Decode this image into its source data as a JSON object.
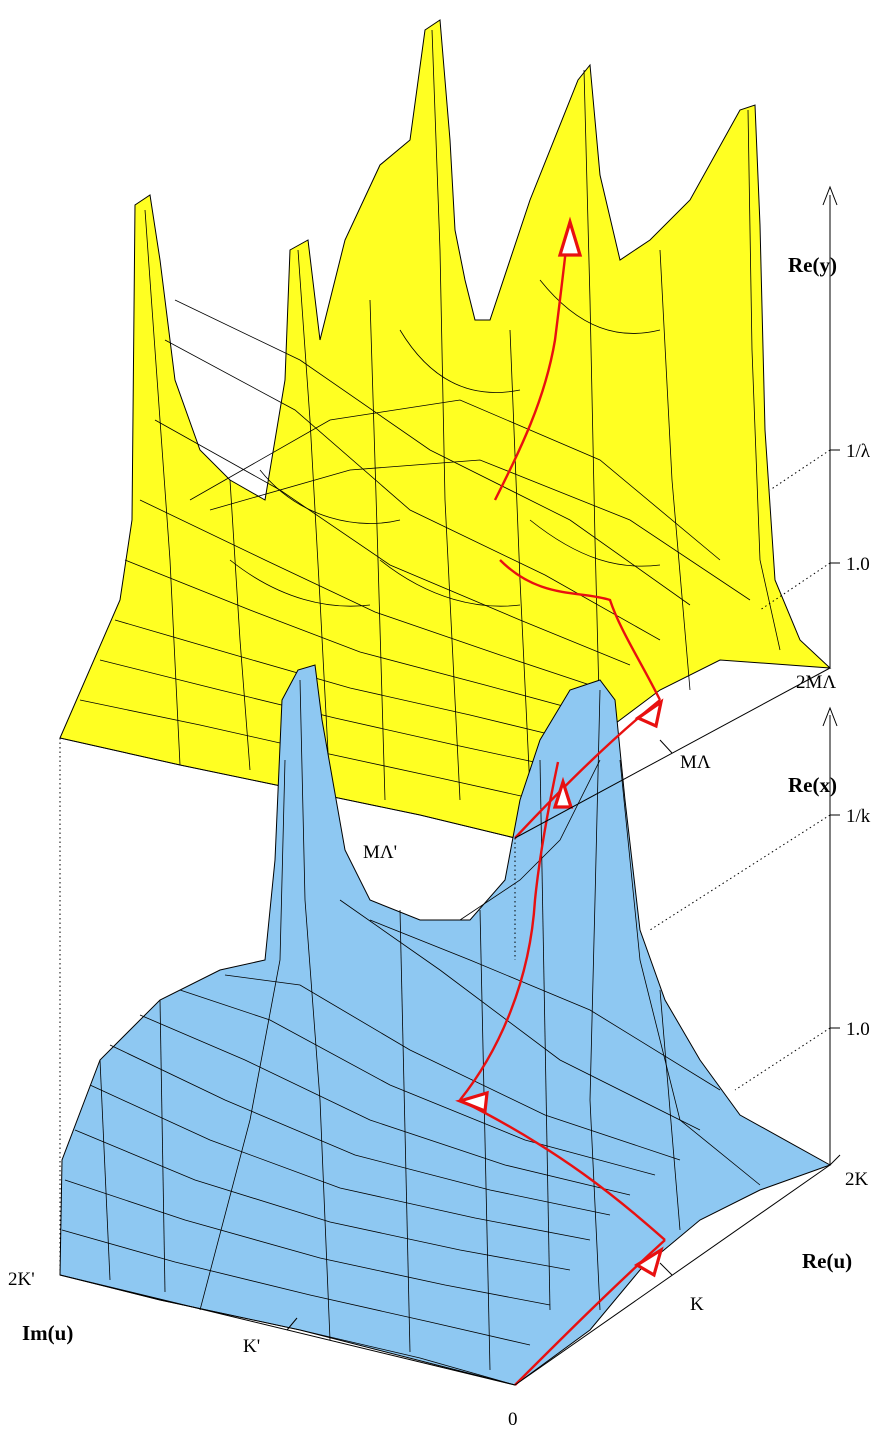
{
  "colors": {
    "upper_surface": "#ffff22",
    "upper_underside": "#33e0e0",
    "lower_surface": "#8ec8f2",
    "lower_underside": "#33e0e0",
    "mesh": "#000000",
    "path": "#e81010"
  },
  "upper_plot": {
    "axis_title": "Re(y)",
    "ticks": {
      "inv_lambda": "1/λ",
      "one": "1.0"
    },
    "base_axis": {
      "far": "2MΛ",
      "mid": "MΛ",
      "near": "MΛ'"
    }
  },
  "lower_plot": {
    "axis_title": "Re(x)",
    "ticks": {
      "inv_k": "1/k",
      "one": "1.0"
    },
    "re_axis": {
      "title": "Re(u)",
      "far": "2K",
      "mid": "K",
      "origin": "0"
    },
    "im_axis": {
      "title": "Im(u)",
      "far": "2K'",
      "mid": "K'"
    }
  },
  "icons": {
    "up_arrow": "up-arrow-icon",
    "path_arrow": "triangle-arrow-icon"
  }
}
